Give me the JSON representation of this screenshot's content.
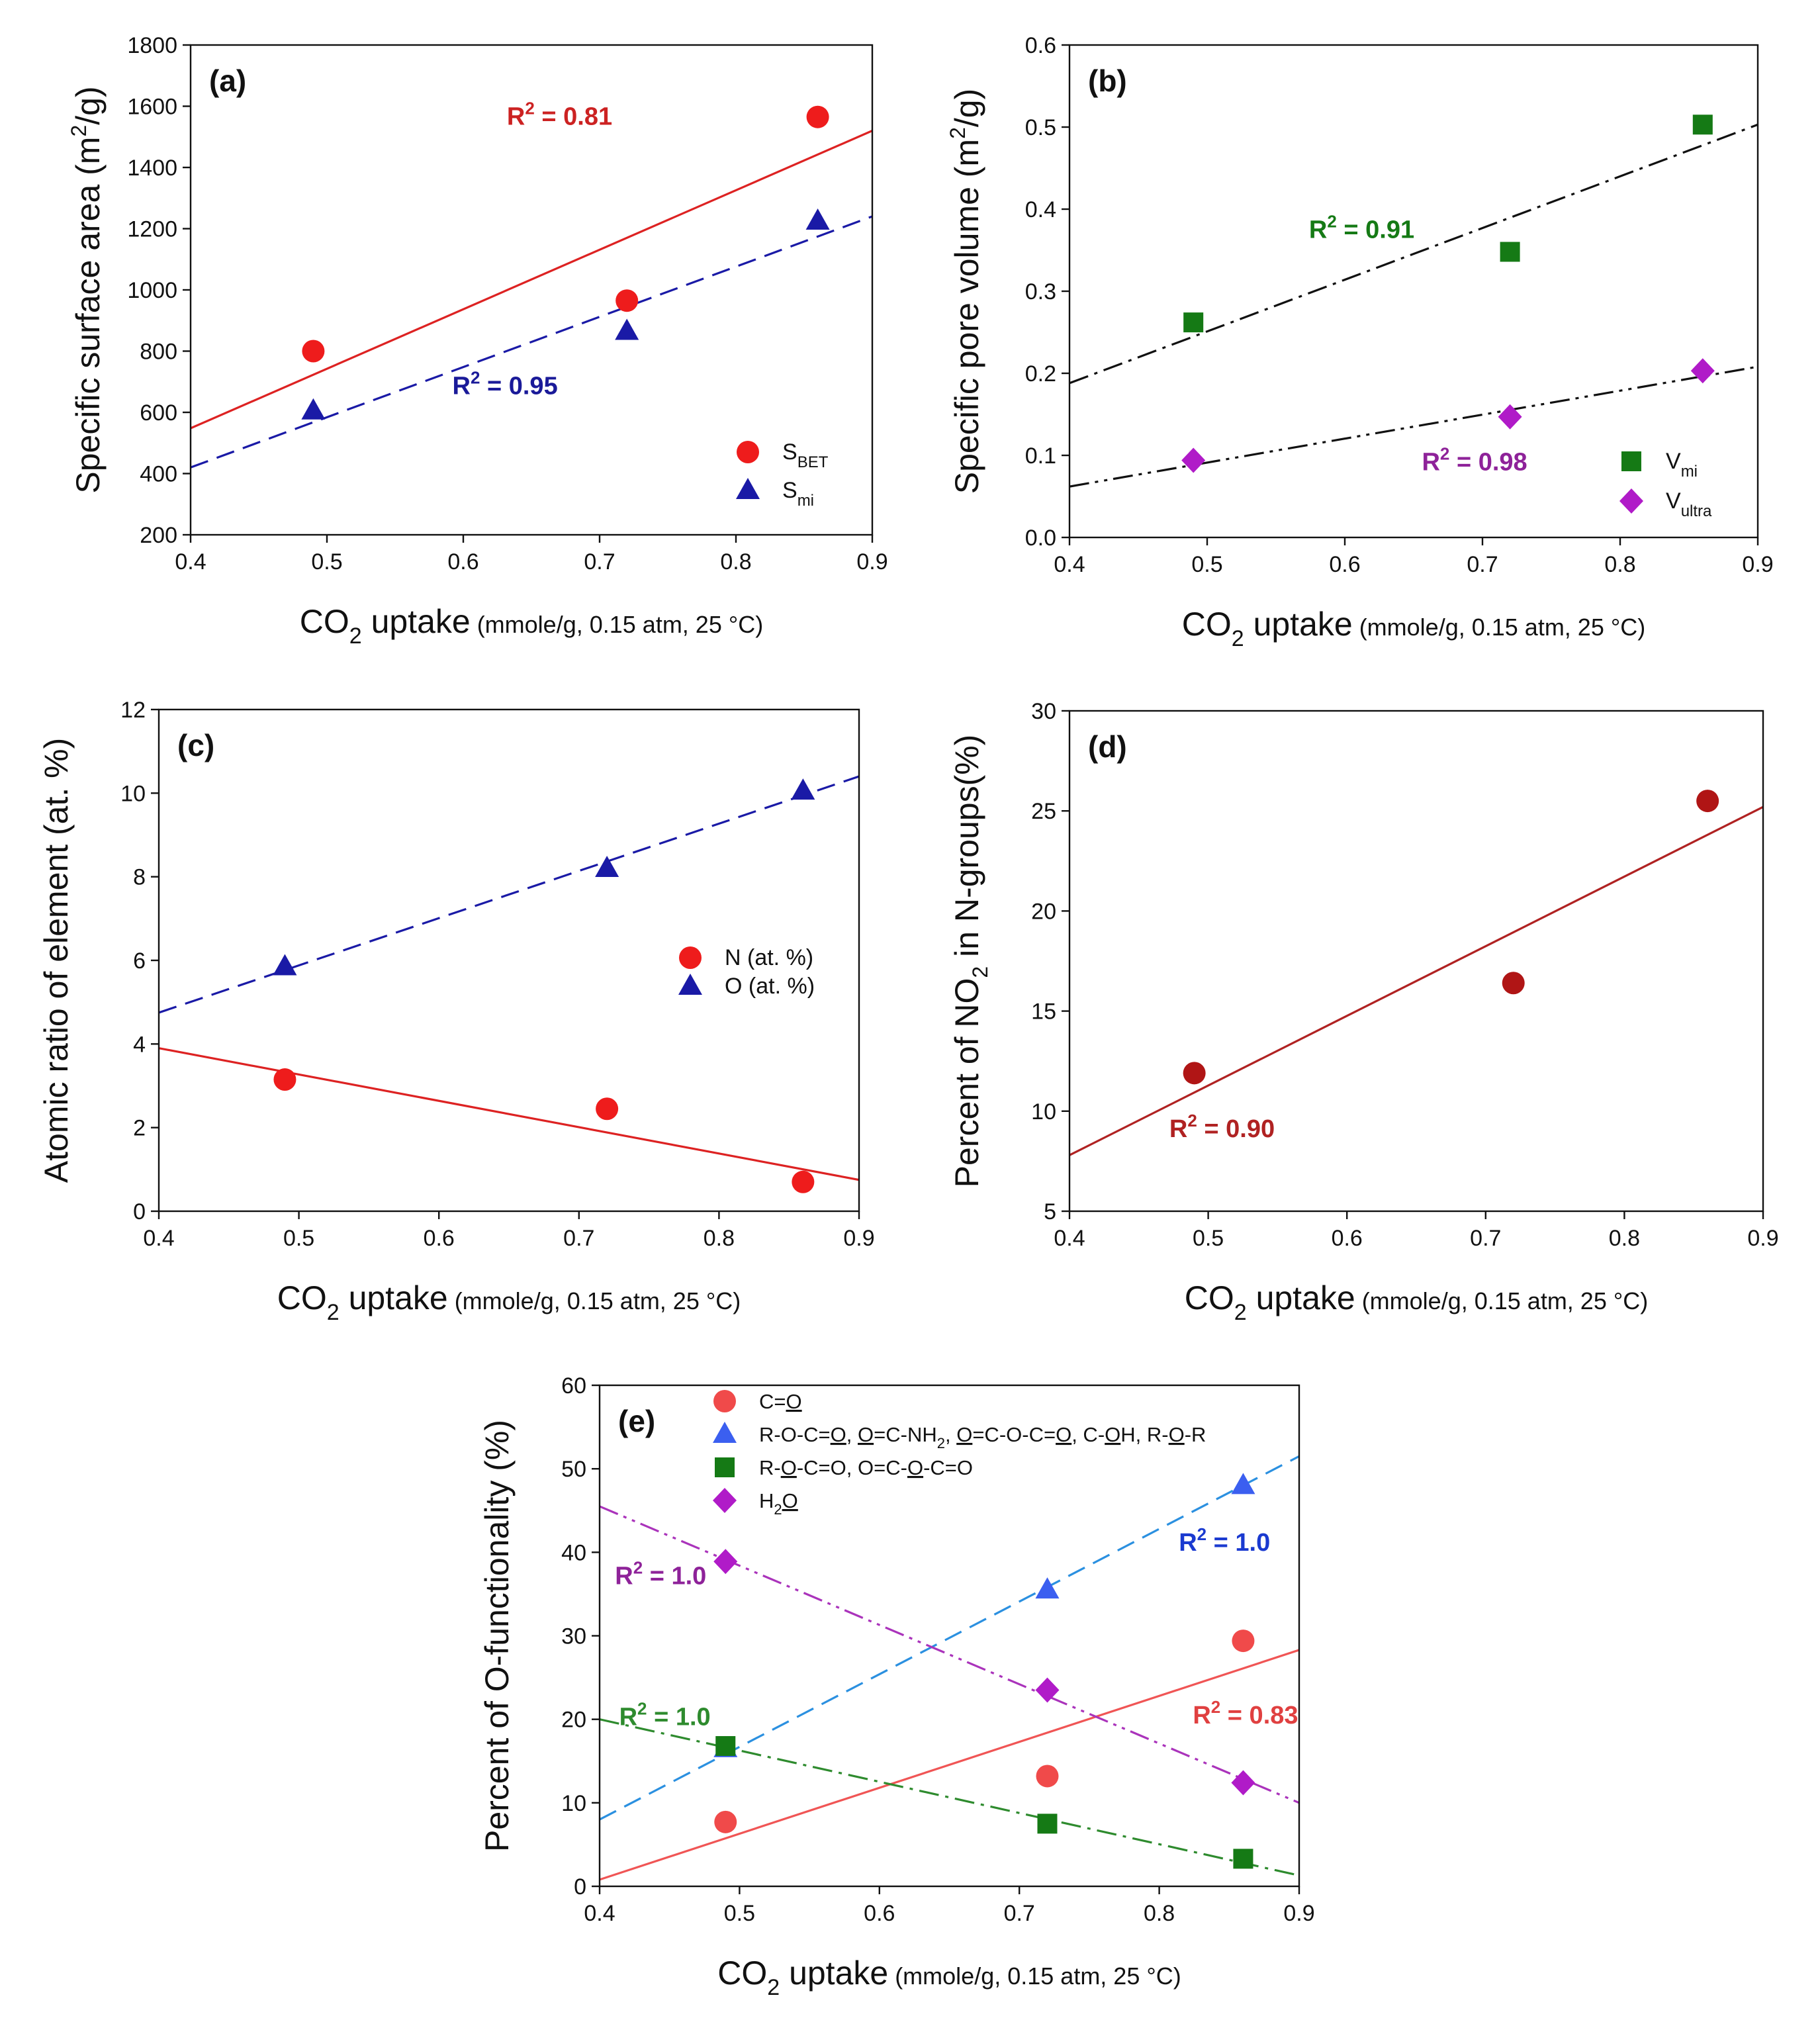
{
  "chart_data": [
    {
      "type": "scatter",
      "panel_label": "(a)",
      "xlabel": {
        "main": "CO",
        "sub": "2",
        "rest": " uptake",
        "paren": "(mmole/g, 0.15 atm, 25 °C)"
      },
      "ylabel": {
        "parts": [
          {
            "t": "Specific surface area (m"
          },
          {
            "t": "2",
            "sup": true
          },
          {
            "t": "/g)"
          }
        ]
      },
      "xlim": [
        0.4,
        0.9
      ],
      "ylim": [
        200,
        1800
      ],
      "xticks": [
        0.4,
        0.5,
        0.6,
        0.7,
        0.8,
        0.9
      ],
      "yticks": [
        200,
        400,
        600,
        800,
        1000,
        1200,
        1400,
        1600,
        1800
      ],
      "xtick_labels": [
        "0.4",
        "0.5",
        "0.6",
        "0.7",
        "0.8",
        "0.9"
      ],
      "ytick_labels": [
        "200",
        "400",
        "600",
        "800",
        "1000",
        "1200",
        "1400",
        "1600",
        "1800"
      ],
      "series": [
        {
          "name": "S",
          "name_sub": "BET",
          "marker": "circle",
          "color": "#ee1c1c",
          "x": [
            0.49,
            0.72,
            0.86
          ],
          "y": [
            800,
            965,
            1565
          ],
          "fit": {
            "style": "solid",
            "color": "#dd2222",
            "x": [
              0.4,
              0.9
            ],
            "y": [
              548,
              1520
            ]
          }
        },
        {
          "name": "S",
          "name_sub": "mi",
          "marker": "triangle",
          "color": "#1a1aa6",
          "x": [
            0.49,
            0.72,
            0.86
          ],
          "y": [
            605,
            865,
            1225
          ],
          "fit": {
            "style": "dashed",
            "color": "#1a1aa6",
            "x": [
              0.4,
              0.9
            ],
            "y": [
              420,
              1240
            ]
          }
        }
      ],
      "annotations": [
        {
          "pre": "R",
          "sup": "2",
          "post": " = 0.81",
          "x": 0.632,
          "y": 1540,
          "color": "#cc2222"
        },
        {
          "pre": "R",
          "sup": "2",
          "post": " = 0.95",
          "x": 0.592,
          "y": 660,
          "color": "#1a1a99"
        }
      ],
      "legend": "bottom-right"
    },
    {
      "type": "scatter",
      "panel_label": "(b)",
      "xlabel": {
        "main": "CO",
        "sub": "2",
        "rest": " uptake",
        "paren": "(mmole/g, 0.15 atm, 25 °C)"
      },
      "ylabel": {
        "parts": [
          {
            "t": "Specific pore volume (m"
          },
          {
            "t": "2",
            "sup": true
          },
          {
            "t": "/g)"
          }
        ]
      },
      "xlim": [
        0.4,
        0.9
      ],
      "ylim": [
        0.0,
        0.6
      ],
      "xticks": [
        0.4,
        0.5,
        0.6,
        0.7,
        0.8,
        0.9
      ],
      "yticks": [
        0.0,
        0.1,
        0.2,
        0.3,
        0.4,
        0.5,
        0.6
      ],
      "xtick_labels": [
        "0.4",
        "0.5",
        "0.6",
        "0.7",
        "0.8",
        "0.9"
      ],
      "ytick_labels": [
        "0.0",
        "0.1",
        "0.2",
        "0.3",
        "0.4",
        "0.5",
        "0.6"
      ],
      "series": [
        {
          "name": "V",
          "name_sub": "mi",
          "marker": "square",
          "color": "#157a15",
          "x": [
            0.49,
            0.72,
            0.86
          ],
          "y": [
            0.262,
            0.348,
            0.503
          ],
          "fit": {
            "style": "dashdot",
            "color": "#111111",
            "x": [
              0.4,
              0.9
            ],
            "y": [
              0.188,
              0.503
            ]
          }
        },
        {
          "name": "V",
          "name_sub": "ultra",
          "marker": "diamond",
          "color": "#b01bc8",
          "x": [
            0.49,
            0.72,
            0.86
          ],
          "y": [
            0.094,
            0.147,
            0.203
          ],
          "fit": {
            "style": "dashdotdot",
            "color": "#111111",
            "x": [
              0.4,
              0.9
            ],
            "y": [
              0.062,
              0.208
            ]
          }
        }
      ],
      "annotations": [
        {
          "pre": "R",
          "sup": "2",
          "post": " = 0.91",
          "x": 0.574,
          "y": 0.365,
          "color": "#157a15"
        },
        {
          "pre": "R",
          "sup": "2",
          "post": " = 0.98",
          "x": 0.656,
          "y": 0.082,
          "color": "#8e2299"
        }
      ],
      "legend": "bottom-right"
    },
    {
      "type": "scatter",
      "panel_label": "(c)",
      "xlabel": {
        "main": "CO",
        "sub": "2",
        "rest": " uptake",
        "paren": "(mmole/g, 0.15 atm, 25 °C)"
      },
      "ylabel": {
        "parts": [
          {
            "t": "Atomic ratio of element (at. %)"
          }
        ]
      },
      "xlim": [
        0.4,
        0.9
      ],
      "ylim": [
        0,
        12
      ],
      "xticks": [
        0.4,
        0.5,
        0.6,
        0.7,
        0.8,
        0.9
      ],
      "yticks": [
        0,
        2,
        4,
        6,
        8,
        10,
        12
      ],
      "xtick_labels": [
        "0.4",
        "0.5",
        "0.6",
        "0.7",
        "0.8",
        "0.9"
      ],
      "ytick_labels": [
        "0",
        "2",
        "4",
        "6",
        "8",
        "10",
        "12"
      ],
      "series": [
        {
          "name": "N (at. %)",
          "marker": "circle",
          "color": "#ee1c1c",
          "x": [
            0.49,
            0.72,
            0.86
          ],
          "y": [
            3.15,
            2.45,
            0.7
          ],
          "fit": {
            "style": "solid",
            "color": "#dd2222",
            "x": [
              0.4,
              0.9
            ],
            "y": [
              3.9,
              0.75
            ]
          }
        },
        {
          "name": "O (at. %)",
          "marker": "triangle",
          "color": "#1a1aa6",
          "x": [
            0.49,
            0.72,
            0.86
          ],
          "y": [
            5.85,
            8.2,
            10.05
          ],
          "fit": {
            "style": "dashed",
            "color": "#1a1aa6",
            "x": [
              0.4,
              0.9
            ],
            "y": [
              4.75,
              10.4
            ]
          }
        }
      ],
      "annotations": [],
      "legend": "center-right"
    },
    {
      "type": "scatter",
      "panel_label": "(d)",
      "xlabel": {
        "main": "CO",
        "sub": "2",
        "rest": " uptake",
        "paren": "(mmole/g, 0.15 atm, 25 °C)"
      },
      "ylabel": {
        "parts": [
          {
            "t": "Percent of NO"
          },
          {
            "t": "2",
            "sub": true
          },
          {
            "t": " in N-groups(%)"
          }
        ]
      },
      "xlim": [
        0.4,
        0.9
      ],
      "ylim": [
        5,
        30
      ],
      "xticks": [
        0.4,
        0.5,
        0.6,
        0.7,
        0.8,
        0.9
      ],
      "yticks": [
        5,
        10,
        15,
        20,
        25,
        30
      ],
      "xtick_labels": [
        "0.4",
        "0.5",
        "0.6",
        "0.7",
        "0.8",
        "0.9"
      ],
      "ytick_labels": [
        "5",
        "10",
        "15",
        "20",
        "25",
        "30"
      ],
      "series": [
        {
          "marker": "circle",
          "color": "#b01515",
          "x": [
            0.49,
            0.72,
            0.86
          ],
          "y": [
            11.9,
            16.4,
            25.5
          ],
          "fit": {
            "style": "solid",
            "color": "#b02222",
            "x": [
              0.4,
              0.9
            ],
            "y": [
              7.8,
              25.2
            ]
          }
        }
      ],
      "annotations": [
        {
          "pre": "R",
          "sup": "2",
          "post": " = 0.90",
          "x": 0.472,
          "y": 8.7,
          "color": "#b02222"
        }
      ],
      "legend": "none"
    },
    {
      "type": "scatter",
      "panel_label": "(e)",
      "xlabel": {
        "main": "CO",
        "sub": "2",
        "rest": " uptake",
        "paren": "(mmole/g, 0.15 atm, 25 °C)"
      },
      "ylabel": {
        "parts": [
          {
            "t": "Percent of O-functionality (%)"
          }
        ]
      },
      "xlim": [
        0.4,
        0.9
      ],
      "ylim": [
        0,
        60
      ],
      "xticks": [
        0.4,
        0.5,
        0.6,
        0.7,
        0.8,
        0.9
      ],
      "yticks": [
        0,
        10,
        20,
        30,
        40,
        50,
        60
      ],
      "xtick_labels": [
        "0.4",
        "0.5",
        "0.6",
        "0.7",
        "0.8",
        "0.9"
      ],
      "ytick_labels": [
        "0",
        "10",
        "20",
        "30",
        "40",
        "50",
        "60"
      ],
      "series": [
        {
          "legend_parts": [
            {
              "t": "C="
            },
            {
              "t": "O",
              "u": true
            }
          ],
          "marker": "circle",
          "color": "#f04a4a",
          "x": [
            0.49,
            0.72,
            0.86
          ],
          "y": [
            7.7,
            13.2,
            29.4
          ],
          "fit": {
            "style": "solid",
            "color": "#f05555",
            "x": [
              0.4,
              0.9
            ],
            "y": [
              0.8,
              28.3
            ]
          }
        },
        {
          "legend_parts": [
            {
              "t": "R-O-C="
            },
            {
              "t": "O",
              "u": true
            },
            {
              "t": ", "
            },
            {
              "t": "O",
              "u": true
            },
            {
              "t": "=C-NH"
            },
            {
              "t": "2",
              "sub": true
            },
            {
              "t": ", "
            },
            {
              "t": "O",
              "u": true
            },
            {
              "t": "=C-O-C="
            },
            {
              "t": "O",
              "u": true
            },
            {
              "t": ", C-"
            },
            {
              "t": "O",
              "u": true
            },
            {
              "t": "H, R-"
            },
            {
              "t": "O",
              "u": true
            },
            {
              "t": "-R"
            }
          ],
          "marker": "triangle",
          "color": "#3b5ff0",
          "x": [
            0.49,
            0.72,
            0.86
          ],
          "y": [
            16.5,
            35.5,
            48.0
          ],
          "fit": {
            "style": "dashed",
            "color": "#2b90e0",
            "x": [
              0.4,
              0.9
            ],
            "y": [
              8.0,
              51.5
            ]
          }
        },
        {
          "legend_parts": [
            {
              "t": "R-"
            },
            {
              "t": "O",
              "u": true
            },
            {
              "t": "-C=O, O=C-"
            },
            {
              "t": "O",
              "u": true
            },
            {
              "t": "-C=O"
            }
          ],
          "marker": "square",
          "color": "#157a15",
          "x": [
            0.49,
            0.72,
            0.86
          ],
          "y": [
            16.8,
            7.5,
            3.3
          ],
          "fit": {
            "style": "dashdot",
            "color": "#2e8b2e",
            "x": [
              0.4,
              0.9
            ],
            "y": [
              20.0,
              1.3
            ]
          }
        },
        {
          "legend_parts": [
            {
              "t": "H"
            },
            {
              "t": "2",
              "sub": true
            },
            {
              "t": "O",
              "u": true
            }
          ],
          "marker": "diamond",
          "color": "#b01bc8",
          "x": [
            0.49,
            0.72,
            0.86
          ],
          "y": [
            38.9,
            23.5,
            12.4
          ],
          "fit": {
            "style": "dashdotdot",
            "color": "#aa33bb",
            "x": [
              0.4,
              0.9
            ],
            "y": [
              45.5,
              10.0
            ]
          }
        }
      ],
      "annotations": [
        {
          "pre": "R",
          "sup": "2",
          "post": " = 1.0",
          "x": 0.411,
          "y": 36.2,
          "color": "#8e2299"
        },
        {
          "pre": "R",
          "sup": "2",
          "post": " = 1.0",
          "x": 0.814,
          "y": 40.2,
          "color": "#1a3ad0"
        },
        {
          "pre": "R",
          "sup": "2",
          "post": " = 1.0",
          "x": 0.414,
          "y": 19.3,
          "color": "#2e8b2e"
        },
        {
          "pre": "R",
          "sup": "2",
          "post": " = 0.83",
          "x": 0.824,
          "y": 19.5,
          "color": "#e04040"
        }
      ],
      "legend": "top-left"
    }
  ]
}
